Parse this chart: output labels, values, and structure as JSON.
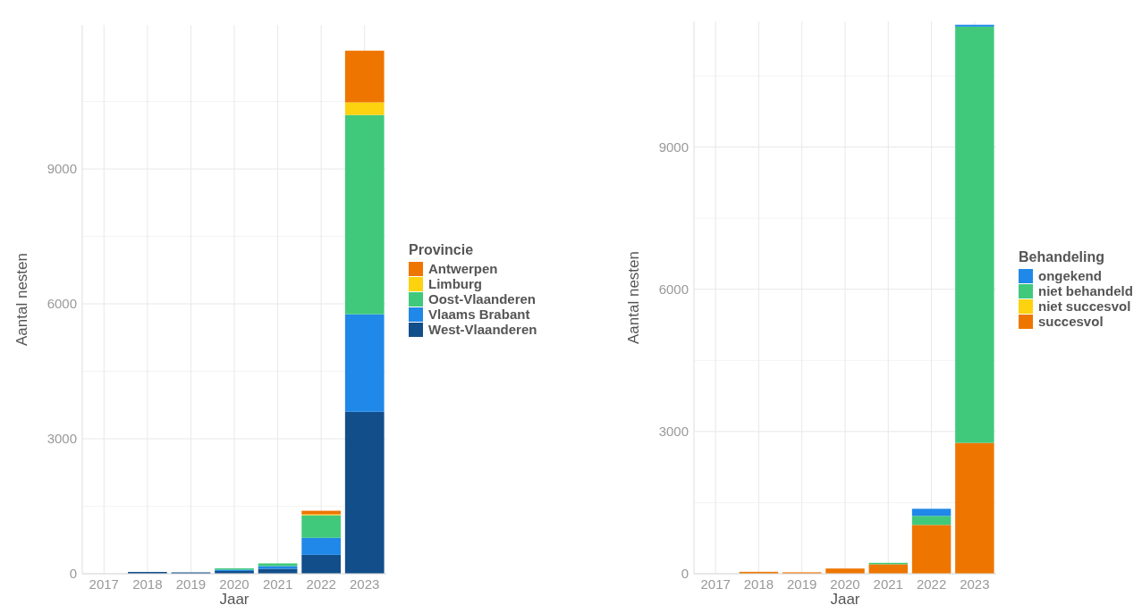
{
  "chart_data": [
    {
      "type": "bar",
      "stacked": true,
      "xlabel": "Jaar",
      "ylabel": "Aantal nesten",
      "legend_title": "Provincie",
      "legend": "right",
      "grid": true,
      "categories": [
        "2017",
        "2018",
        "2019",
        "2020",
        "2021",
        "2022",
        "2023"
      ],
      "ylim": [
        0,
        12200
      ],
      "yticks": [
        0,
        3000,
        6000,
        9000
      ],
      "series": [
        {
          "name": "West-Vlaanderen",
          "color": "#124e8a",
          "values": [
            0,
            40,
            30,
            60,
            110,
            420,
            3600
          ]
        },
        {
          "name": "Vlaams Brabant",
          "color": "#2088e8",
          "values": [
            0,
            null,
            null,
            30,
            60,
            380,
            2170
          ]
        },
        {
          "name": "Oost-Vlaanderen",
          "color": "#40c97b",
          "values": [
            0,
            0,
            0,
            30,
            60,
            500,
            4430
          ]
        },
        {
          "name": "Limburg",
          "color": "#fdd20e",
          "values": [
            0,
            0,
            0,
            0,
            0,
            20,
            280
          ]
        },
        {
          "name": "Antwerpen",
          "color": "#ee7600",
          "values": [
            0,
            0,
            0,
            0,
            null,
            80,
            1150
          ]
        }
      ]
    },
    {
      "type": "bar",
      "stacked": true,
      "xlabel": "Jaar",
      "ylabel": "Aantal nesten",
      "legend_title": "Behandeling",
      "legend": "right",
      "grid": true,
      "categories": [
        "2017",
        "2018",
        "2019",
        "2020",
        "2021",
        "2022",
        "2023"
      ],
      "ylim": [
        0,
        11650
      ],
      "yticks": [
        0,
        3000,
        6000,
        9000
      ],
      "series": [
        {
          "name": "succesvol",
          "color": "#ee7600",
          "values": [
            0,
            40,
            30,
            110,
            200,
            1030,
            2760
          ]
        },
        {
          "name": "niet succesvol",
          "color": "#fdd20e",
          "values": [
            0,
            0,
            0,
            0,
            0,
            0,
            0
          ]
        },
        {
          "name": "niet behandeld",
          "color": "#40c97b",
          "values": [
            0,
            0,
            0,
            0,
            30,
            190,
            8780
          ]
        },
        {
          "name": "ongekend",
          "color": "#2088e8",
          "values": [
            0,
            0,
            0,
            0,
            0,
            150,
            40
          ]
        }
      ]
    }
  ]
}
